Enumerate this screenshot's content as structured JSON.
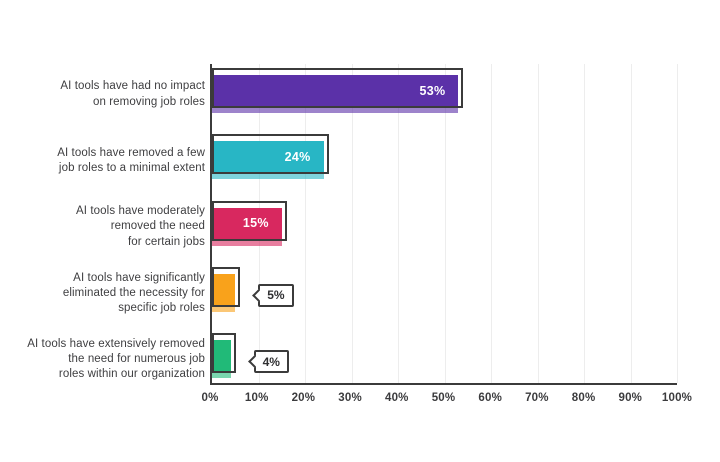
{
  "chart_data": {
    "type": "bar",
    "orientation": "horizontal",
    "title": "",
    "legend": "none",
    "grid": "vertical-light",
    "categories": [
      "AI tools have had no impact\non removing job roles",
      "AI tools have removed a few\njob roles to a minimal extent",
      "AI tools have moderately\nremoved the need\nfor certain jobs",
      "AI tools have significantly\neliminated the necessity for\nspecific job roles",
      "AI tools have extensively removed\nthe need for numerous job\nroles within our organization"
    ],
    "values": [
      53,
      24,
      15,
      5,
      4
    ],
    "value_labels": [
      "53%",
      "24%",
      "15%",
      "5%",
      "4%"
    ],
    "value_label_positions": [
      "inside",
      "inside",
      "inside",
      "callout",
      "callout"
    ],
    "bar_colors": [
      "#5B31A8",
      "#28B6C5",
      "#D8285F",
      "#F9A21B",
      "#21BA78"
    ],
    "x_axis": {
      "range": [
        0,
        100
      ],
      "ticks": [
        "0%",
        "10%",
        "20%",
        "30%",
        "40%",
        "50%",
        "60%",
        "70%",
        "80%",
        "90%",
        "100%"
      ]
    },
    "colors": {
      "outline": "#3B3B3B",
      "axis": "#3B3B3B",
      "gridline": "#EDEDED",
      "category_text": "#3E3E40",
      "inside_value_text": "#FFFFFF",
      "callout_text": "#2F2F31",
      "background": "#FFFFFF"
    }
  }
}
